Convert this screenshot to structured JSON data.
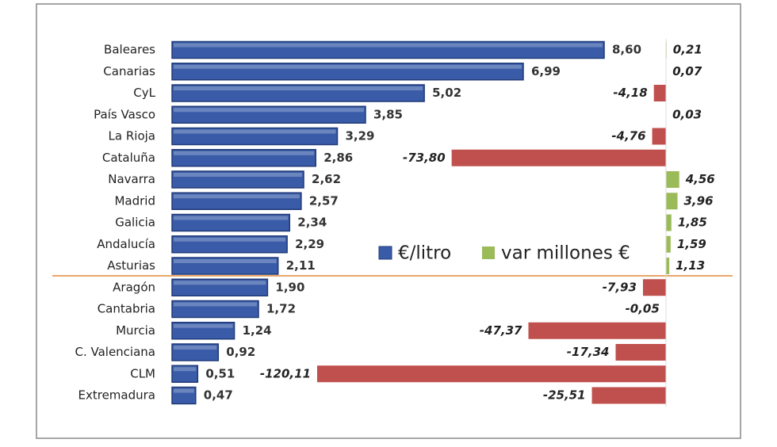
{
  "chart_data": {
    "type": "bar",
    "categories": [
      "Baleares",
      "Canarias",
      "CyL",
      "País Vasco",
      "La Rioja",
      "Cataluña",
      "Navarra",
      "Madrid",
      "Galicia",
      "Andalucía",
      "Asturias",
      "Aragón",
      "Cantabria",
      "Murcia",
      "C. Valenciana",
      "CLM",
      "Extremadura"
    ],
    "series": [
      {
        "name": "€/litro",
        "color": "#3a5ca8",
        "values": [
          8.6,
          6.99,
          5.02,
          3.85,
          3.29,
          2.86,
          2.62,
          2.57,
          2.34,
          2.29,
          2.11,
          1.9,
          1.72,
          1.24,
          0.92,
          0.51,
          0.47
        ],
        "value_labels": [
          "8,60",
          "6,99",
          "5,02",
          "3,85",
          "3,29",
          "2,86",
          "2,62",
          "2,57",
          "2,34",
          "2,29",
          "2,11",
          "1,90",
          "1,72",
          "1,24",
          "0,92",
          "0,51",
          "0,47"
        ]
      },
      {
        "name": "var millones €",
        "color": "#9bbb59",
        "negative_color": "#c0504d",
        "values": [
          0.21,
          0.07,
          -4.18,
          0.03,
          -4.76,
          -73.8,
          4.56,
          3.96,
          1.85,
          1.59,
          1.13,
          -7.93,
          -0.05,
          -47.37,
          -17.34,
          -120.11,
          -25.51
        ],
        "value_labels": [
          "0,21",
          "0,07",
          "-4,18",
          "0,03",
          "-4,76",
          "-73,80",
          "4,56",
          "3,96",
          "1,85",
          "1,59",
          "1,13",
          "-7,93",
          "-0,05",
          "-47,37",
          "-17,34",
          "-120,11",
          "-25,51"
        ]
      }
    ]
  }
}
